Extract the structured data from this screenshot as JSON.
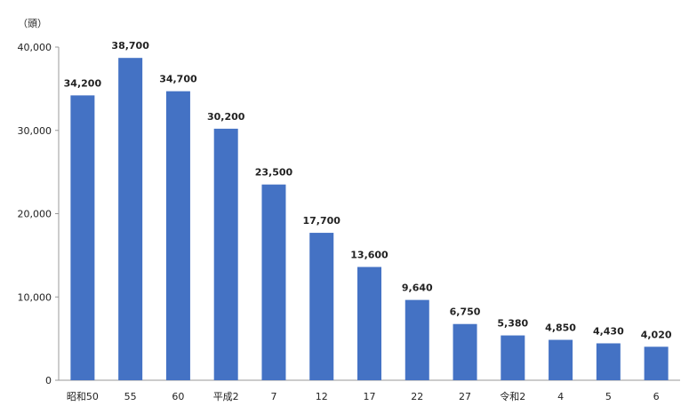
{
  "chart_data": {
    "type": "bar",
    "unit_label": "（頭）",
    "categories": [
      "昭和50",
      "55",
      "60",
      "平成2",
      "7",
      "12",
      "17",
      "22",
      "27",
      "令和2",
      "4",
      "5",
      "6"
    ],
    "values": [
      34200,
      38700,
      34700,
      30200,
      23500,
      17700,
      13600,
      9640,
      6750,
      5380,
      4850,
      4430,
      4020
    ],
    "data_labels": [
      "34,200",
      "38,700",
      "34,700",
      "30,200",
      "23,500",
      "17,700",
      "13,600",
      "9,640",
      "6,750",
      "5,380",
      "4,850",
      "4,430",
      "4,020"
    ],
    "yticks": [
      0,
      10000,
      20000,
      30000,
      40000
    ],
    "ytick_labels": [
      "0",
      "10,000",
      "20,000",
      "30,000",
      "40,000"
    ],
    "ylim": [
      0,
      40000
    ],
    "grid": false,
    "legend": "none",
    "bar_color": "#4472c4"
  }
}
